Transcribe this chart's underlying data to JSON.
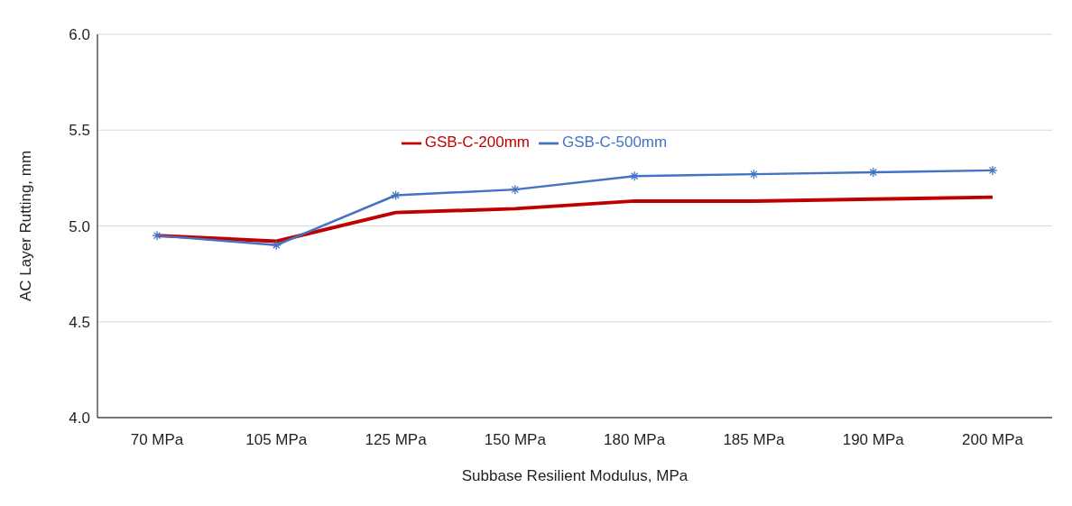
{
  "chart_data": {
    "type": "line",
    "xlabel": "Subbase Resilient Modulus, MPa",
    "ylabel": "AC Layer Rutting, mm",
    "categories": [
      "70 MPa",
      "105 MPa",
      "125 MPa",
      "150 MPa",
      "180 MPa",
      "185 MPa",
      "190 MPa",
      "200 MPa"
    ],
    "series": [
      {
        "name": "GSB-C-200mm",
        "color": "#c00000",
        "marker": "none",
        "values": [
          4.95,
          4.92,
          5.07,
          5.09,
          5.13,
          5.13,
          5.14,
          5.15
        ]
      },
      {
        "name": "GSB-C-500mm",
        "color": "#4472c4",
        "marker": "cross",
        "values": [
          4.95,
          4.9,
          5.16,
          5.19,
          5.26,
          5.27,
          5.28,
          5.29
        ]
      }
    ],
    "ylim": [
      4.0,
      6.0
    ],
    "yticks": [
      {
        "value": 4.0,
        "label": "4.0"
      },
      {
        "value": 4.5,
        "label": "4.5"
      },
      {
        "value": 5.0,
        "label": "5.0"
      },
      {
        "value": 5.5,
        "label": "5.5"
      },
      {
        "value": 6.0,
        "label": "6.0"
      }
    ],
    "grid": "y",
    "legend": "top",
    "line_style": "solid"
  }
}
